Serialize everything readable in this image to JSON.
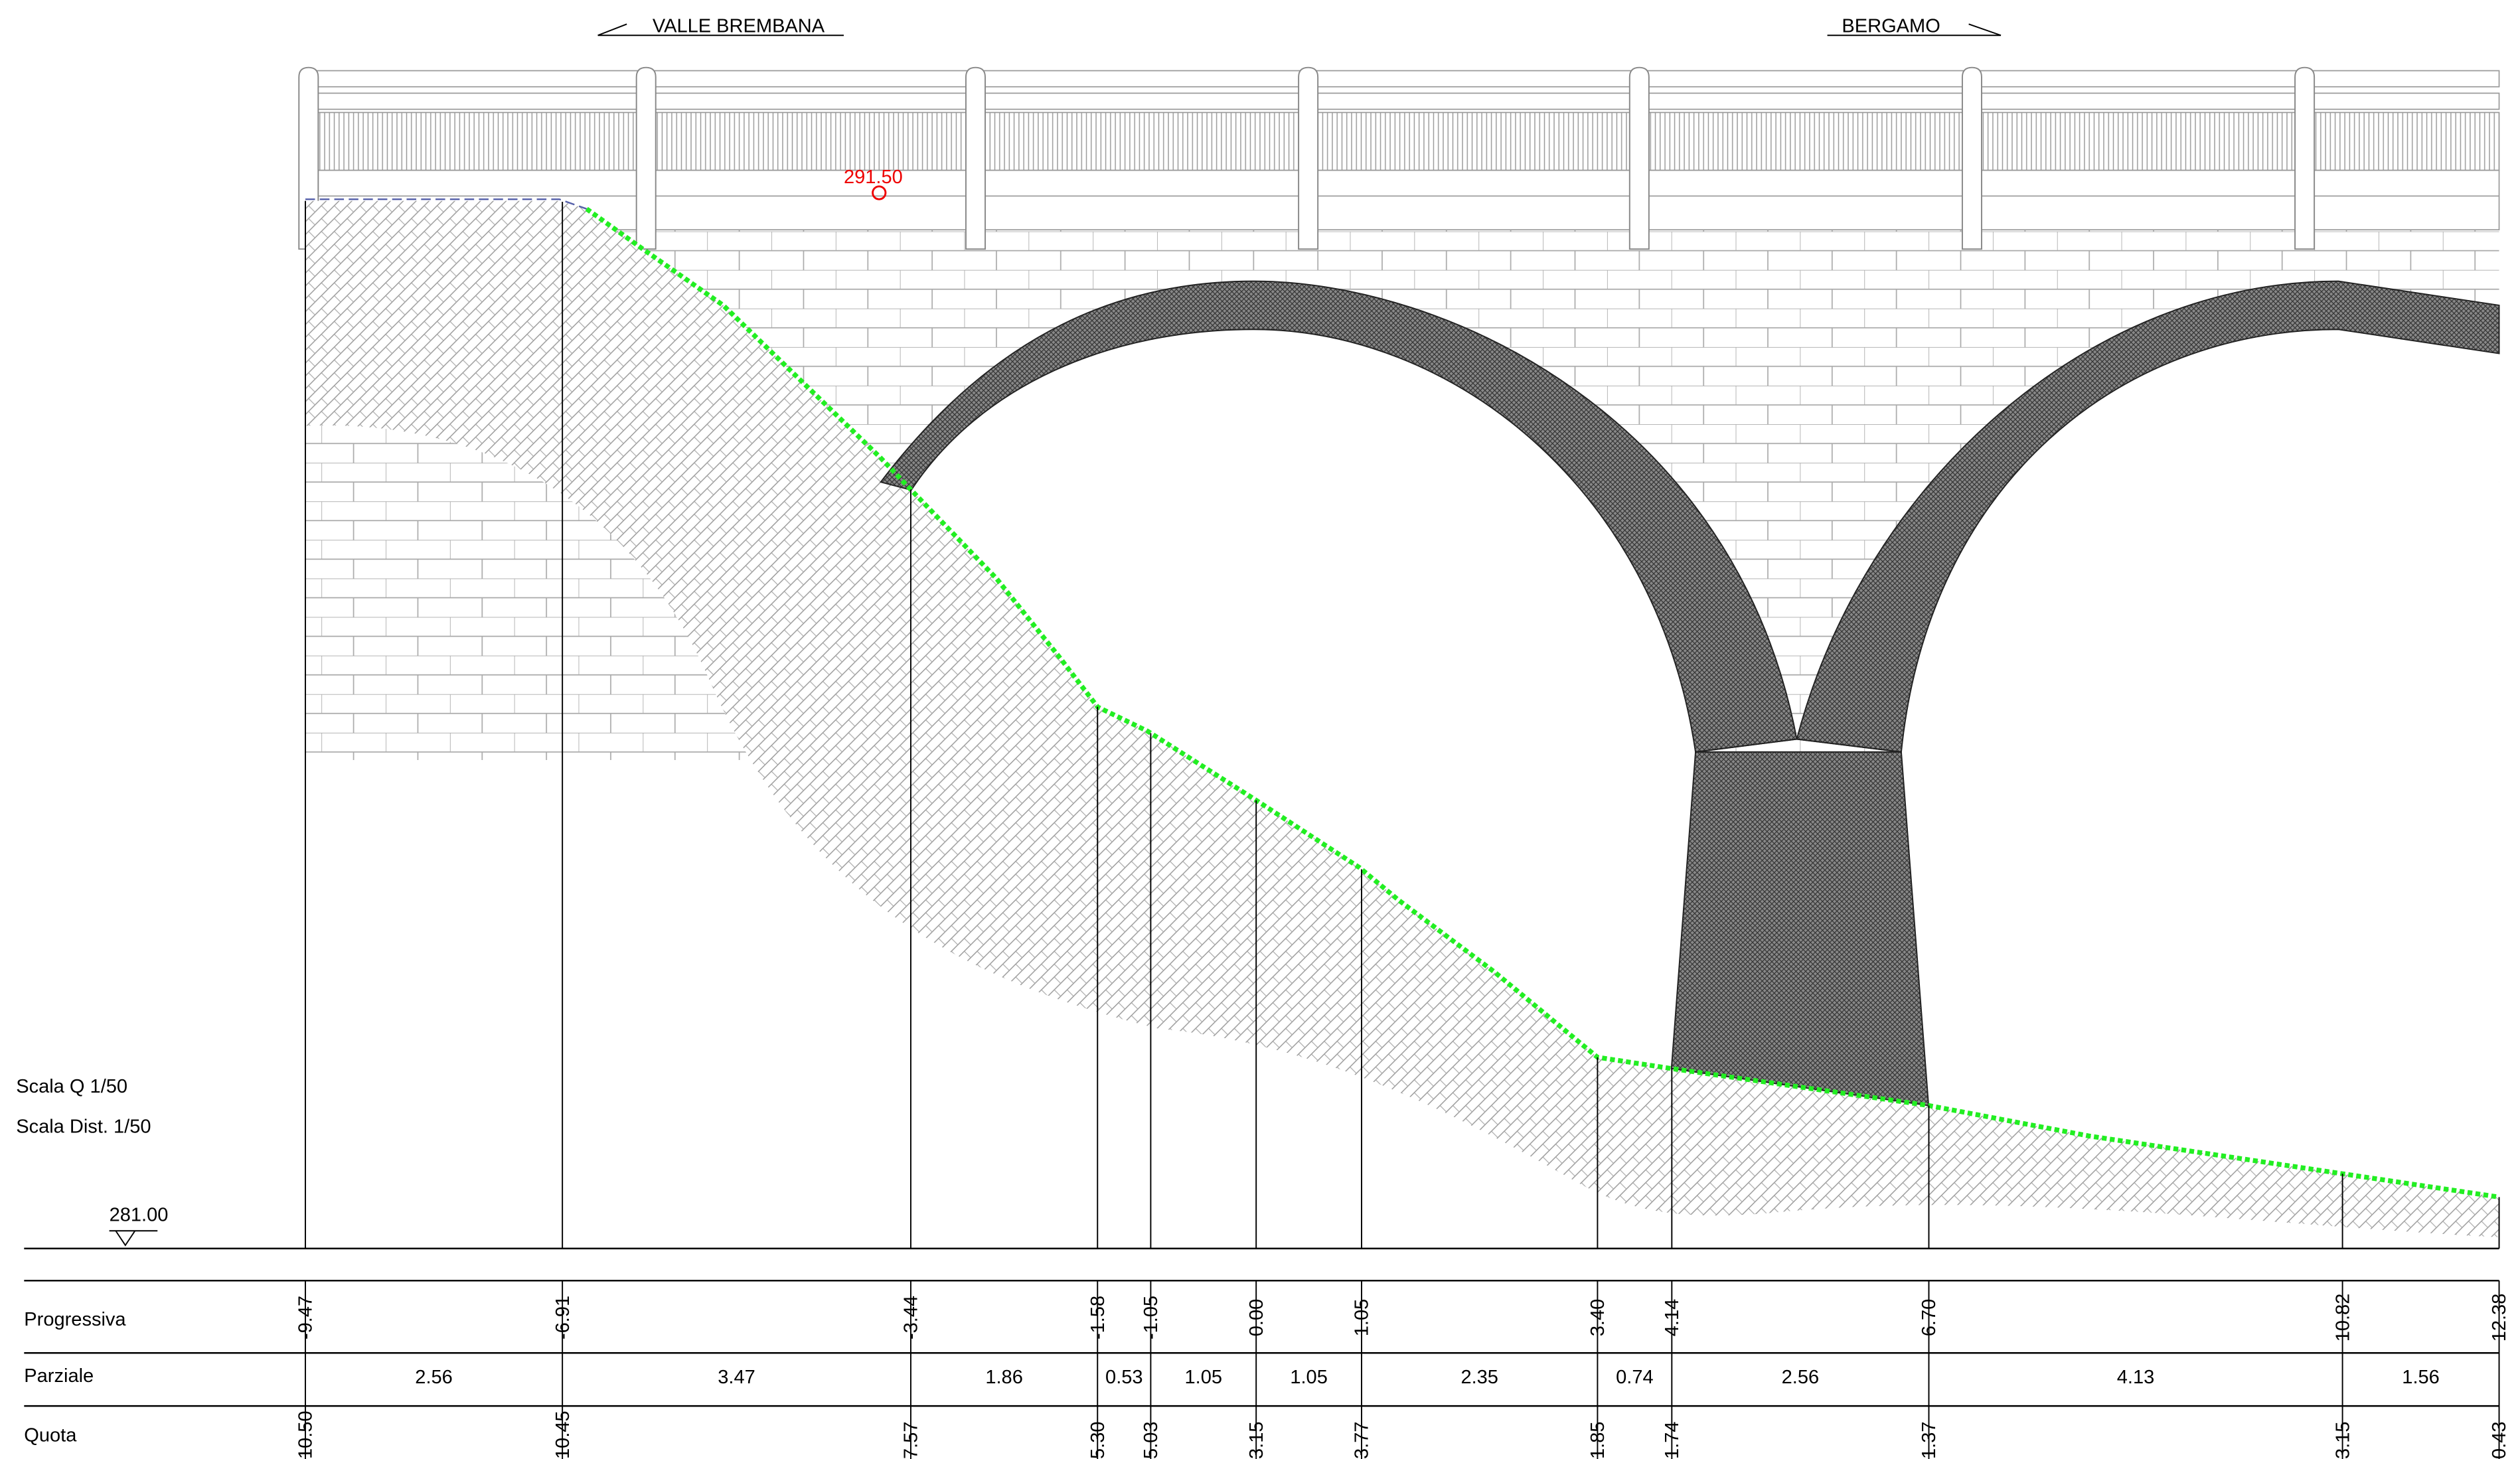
{
  "header": {
    "left_direction": "VALLE BREMBANA",
    "right_direction": "BERGAMO"
  },
  "elevation_marker": "291.50",
  "scales": [
    "Scala Q 1/50",
    "Scala Dist. 1/50"
  ],
  "reference_level": "281.00",
  "table": {
    "row_labels": [
      "Progressiva",
      "Parziale",
      "Quota"
    ],
    "progressiva": [
      "-9.47",
      "-6.91",
      "-3.44",
      "-1.58",
      "-1.05",
      "0.00",
      "1.05",
      "3.40",
      "4.14",
      "6.70",
      "10.82",
      "12.38"
    ],
    "parziale": [
      "2.56",
      "3.47",
      "1.86",
      "0.53",
      "1.05",
      "1.05",
      "2.35",
      "0.74",
      "2.56",
      "4.13",
      "1.56"
    ],
    "quota": [
      "10.50",
      "10.45",
      "7.57",
      "5.30",
      "5.03",
      "3.15",
      "3.77",
      "1.85",
      "1.74",
      "1.37",
      "3.15",
      "0.43"
    ]
  }
}
